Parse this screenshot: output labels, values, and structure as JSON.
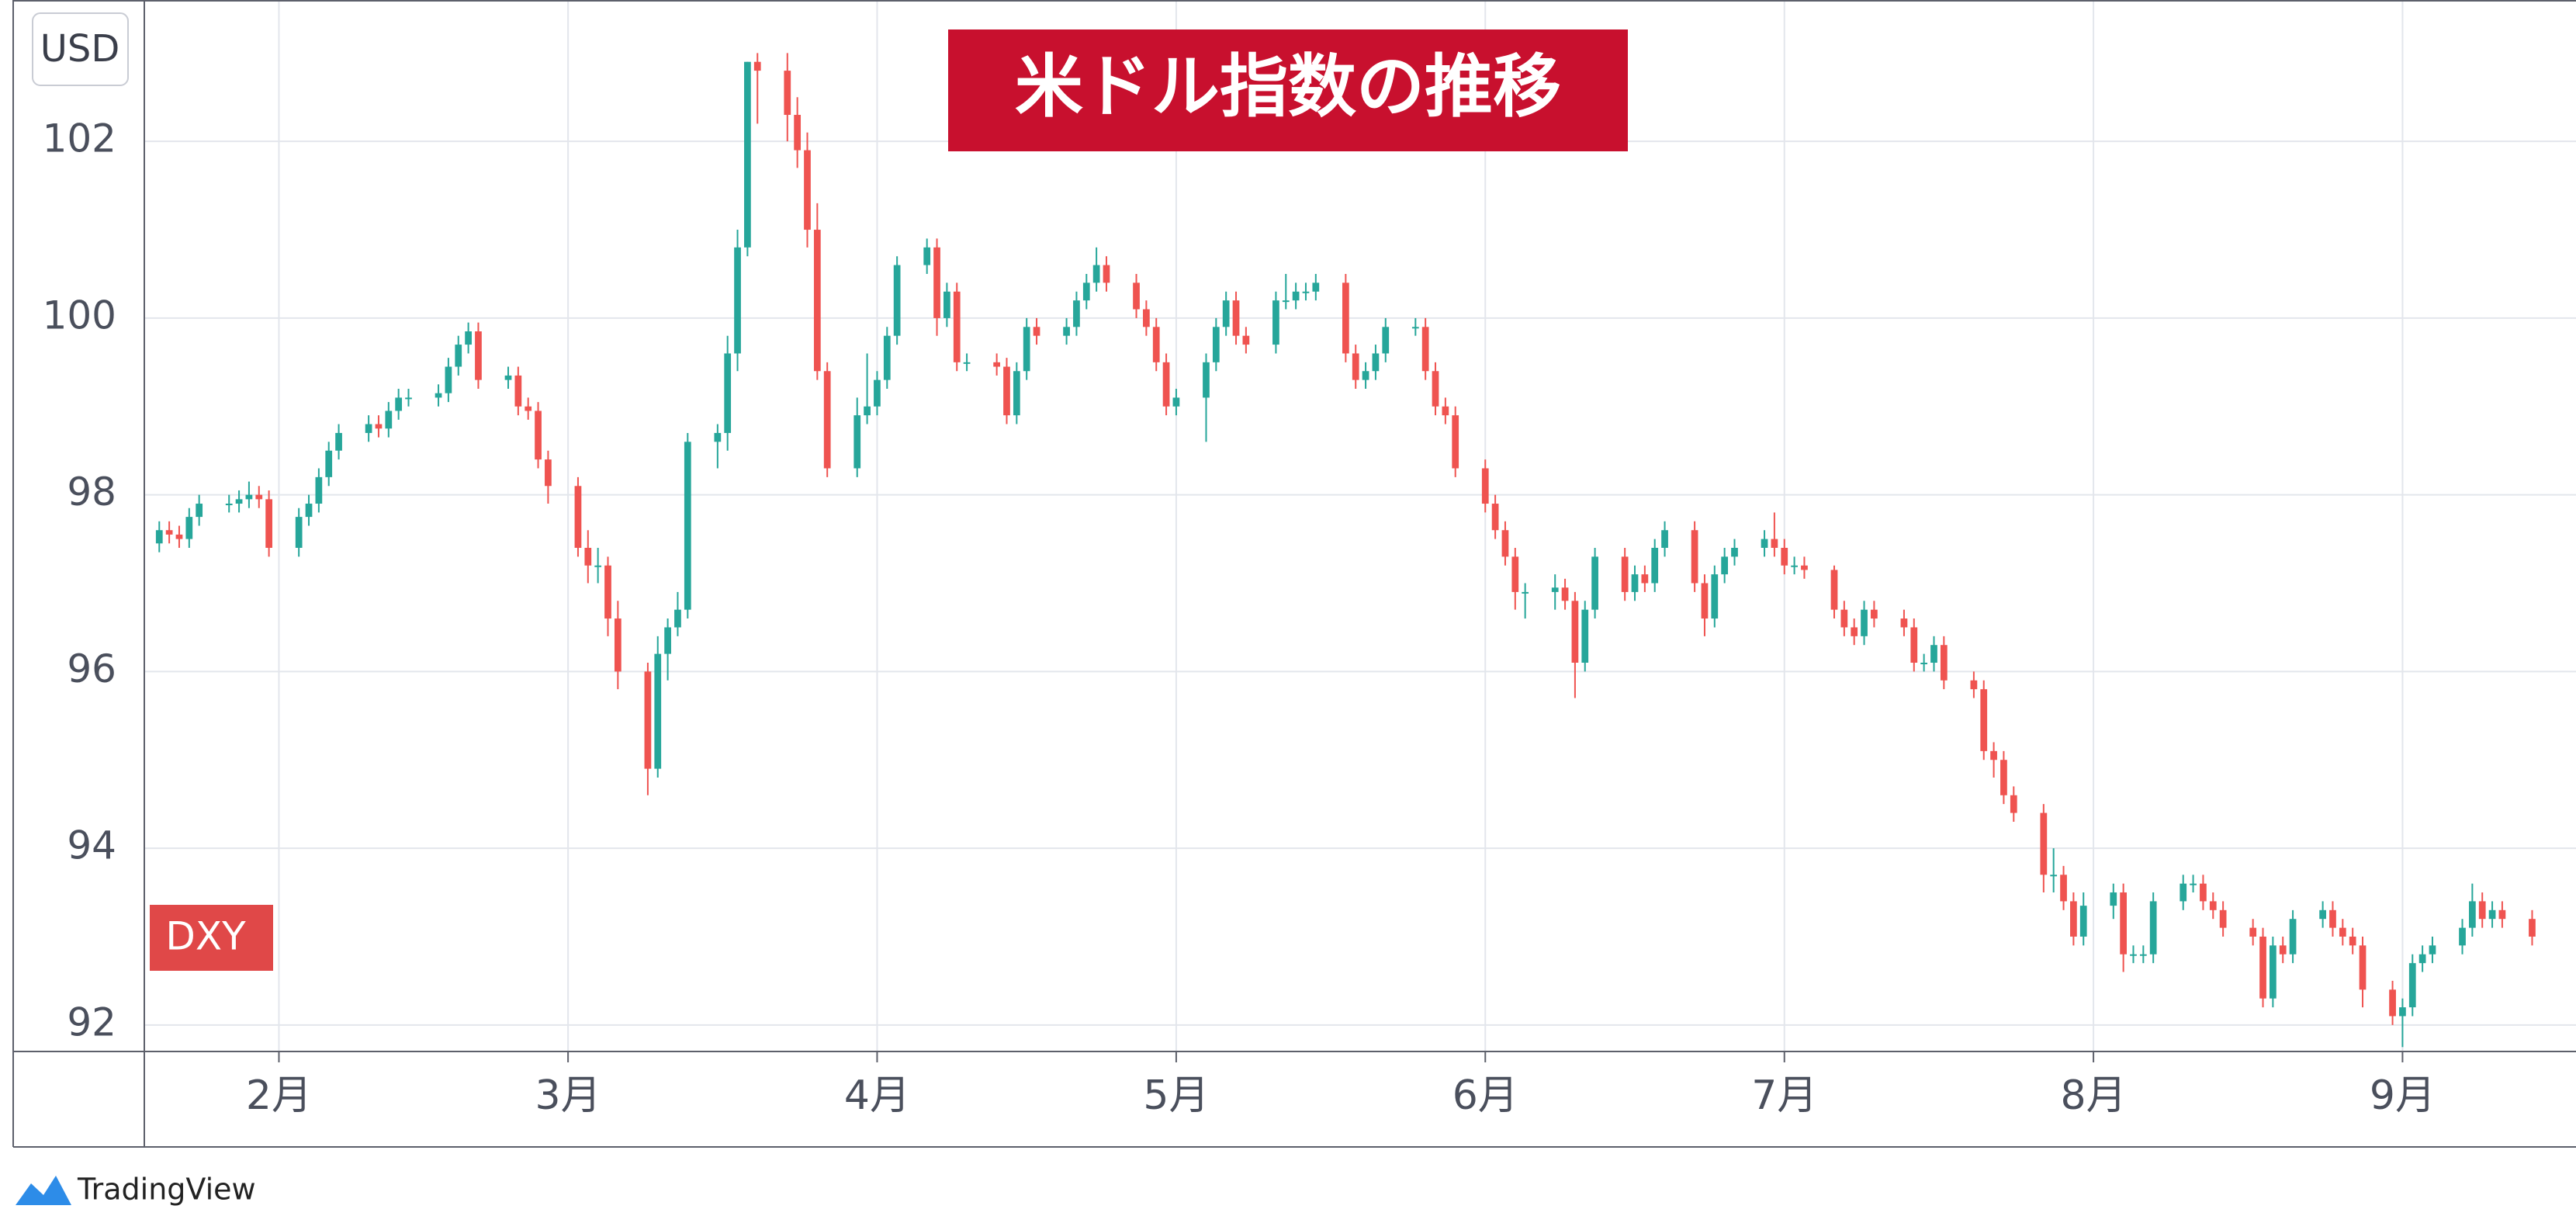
{
  "chart_data": {
    "type": "candlestick",
    "title": "米ドル指数の推移",
    "unit_label": "USD",
    "symbol": "DXY",
    "watermark": "TradingView",
    "up_color": "#26a69a",
    "down_color": "#ef5350",
    "grid": true,
    "xlim": [
      18.5,
      262.4
    ],
    "ylim": [
      91.7,
      103.6
    ],
    "yticks": [
      92,
      94,
      96,
      98,
      100,
      102
    ],
    "xticks": [
      {
        "value": 32,
        "label": "2月"
      },
      {
        "value": 61,
        "label": "3月"
      },
      {
        "value": 92,
        "label": "4月"
      },
      {
        "value": 122,
        "label": "5月"
      },
      {
        "value": 153,
        "label": "6月"
      },
      {
        "value": 183,
        "label": "7月"
      },
      {
        "value": 214,
        "label": "8月"
      },
      {
        "value": 245,
        "label": "9月"
      }
    ],
    "x": [
      20,
      21,
      22,
      23,
      24,
      27,
      28,
      29,
      30,
      31,
      34,
      35,
      36,
      37,
      38,
      41,
      42,
      43,
      44,
      45,
      48,
      49,
      50,
      51,
      52,
      55,
      56,
      57,
      58,
      59,
      62,
      63,
      64,
      65,
      66,
      69,
      70,
      71,
      72,
      73,
      76,
      77,
      78,
      79,
      80,
      83,
      84,
      85,
      86,
      87,
      90,
      91,
      92,
      93,
      94,
      97,
      98,
      99,
      100,
      101,
      104,
      105,
      106,
      107,
      108,
      111,
      112,
      113,
      114,
      115,
      118,
      119,
      120,
      121,
      122,
      125,
      126,
      127,
      128,
      129,
      132,
      133,
      134,
      135,
      136,
      139,
      140,
      141,
      142,
      143,
      146,
      147,
      148,
      149,
      150,
      153,
      154,
      155,
      156,
      157,
      160,
      161,
      162,
      163,
      164,
      167,
      168,
      169,
      170,
      171,
      174,
      175,
      176,
      177,
      178,
      181,
      182,
      183,
      184,
      185,
      188,
      189,
      190,
      191,
      192,
      195,
      196,
      197,
      198,
      199,
      202,
      203,
      204,
      205,
      206,
      209,
      210,
      211,
      212,
      213,
      216,
      217,
      218,
      219,
      220,
      223,
      224,
      225,
      226,
      227,
      230,
      231,
      232,
      233,
      234,
      237,
      238,
      239,
      240,
      241,
      244,
      245,
      246,
      247,
      248,
      251,
      252,
      253,
      254,
      255,
      258
    ],
    "open": [
      97.45,
      97.6,
      97.55,
      97.5,
      97.75,
      97.9,
      97.9,
      97.95,
      98.0,
      97.95,
      97.4,
      97.75,
      97.9,
      98.2,
      98.5,
      98.7,
      98.8,
      98.75,
      98.95,
      99.1,
      99.1,
      99.15,
      99.45,
      99.7,
      99.85,
      99.3,
      99.35,
      99.0,
      98.95,
      98.4,
      98.1,
      97.4,
      97.2,
      97.2,
      96.6,
      96.0,
      94.9,
      96.2,
      96.5,
      96.7,
      98.6,
      98.7,
      99.6,
      100.8,
      102.9,
      102.8,
      102.3,
      101.9,
      101.0,
      99.4,
      98.3,
      98.9,
      99.0,
      99.3,
      99.8,
      100.6,
      100.8,
      100.0,
      100.3,
      99.5,
      99.5,
      99.45,
      98.9,
      99.4,
      99.9,
      99.8,
      99.9,
      100.2,
      100.4,
      100.6,
      100.4,
      100.1,
      99.9,
      99.5,
      99.0,
      99.1,
      99.5,
      99.9,
      100.2,
      99.8,
      99.7,
      100.2,
      100.2,
      100.3,
      100.3,
      100.4,
      99.6,
      99.3,
      99.4,
      99.6,
      99.9,
      99.9,
      99.4,
      99.0,
      98.9,
      98.3,
      97.9,
      97.6,
      97.3,
      96.9,
      96.9,
      96.95,
      96.8,
      96.1,
      96.7,
      97.3,
      96.9,
      97.1,
      97.0,
      97.4,
      97.6,
      97.0,
      96.6,
      97.1,
      97.3,
      97.4,
      97.5,
      97.4,
      97.2,
      97.2,
      97.15,
      96.7,
      96.5,
      96.4,
      96.7,
      96.6,
      96.5,
      96.1,
      96.1,
      96.3,
      95.9,
      95.8,
      95.1,
      95.0,
      94.6,
      94.4,
      93.7,
      93.7,
      93.4,
      93.0,
      93.35,
      93.5,
      92.8,
      92.8,
      92.8,
      93.4,
      93.6,
      93.6,
      93.4,
      93.3,
      93.1,
      93.0,
      92.3,
      92.9,
      92.8,
      93.2,
      93.3,
      93.1,
      93.0,
      92.9,
      92.4,
      92.1,
      92.2,
      92.7,
      92.8,
      92.9,
      93.1,
      93.4,
      93.2,
      93.3,
      93.2
    ],
    "high": [
      97.7,
      97.7,
      97.65,
      97.85,
      98.0,
      98.0,
      98.05,
      98.15,
      98.1,
      98.05,
      97.85,
      98.0,
      98.3,
      98.6,
      98.8,
      98.9,
      98.9,
      99.05,
      99.2,
      99.2,
      99.25,
      99.55,
      99.8,
      99.95,
      99.95,
      99.45,
      99.45,
      99.1,
      99.05,
      98.5,
      98.2,
      97.6,
      97.4,
      97.3,
      96.8,
      96.1,
      96.4,
      96.6,
      96.9,
      98.7,
      98.8,
      99.8,
      101.0,
      102.9,
      103.0,
      103.0,
      102.5,
      102.1,
      101.3,
      99.5,
      99.1,
      99.6,
      99.4,
      99.9,
      100.7,
      100.9,
      100.9,
      100.4,
      100.4,
      99.6,
      99.6,
      99.55,
      99.5,
      100.0,
      100.0,
      100.0,
      100.3,
      100.5,
      100.8,
      100.7,
      100.5,
      100.2,
      100.0,
      99.6,
      99.2,
      99.6,
      100.0,
      100.3,
      100.3,
      99.9,
      100.3,
      100.5,
      100.4,
      100.4,
      100.5,
      100.5,
      99.7,
      99.5,
      99.7,
      100.0,
      100.0,
      100.0,
      99.5,
      99.1,
      99.0,
      98.4,
      98.0,
      97.7,
      97.4,
      97.0,
      97.1,
      97.05,
      96.9,
      96.8,
      97.4,
      97.4,
      97.2,
      97.2,
      97.5,
      97.7,
      97.7,
      97.1,
      97.2,
      97.4,
      97.5,
      97.6,
      97.8,
      97.5,
      97.3,
      97.3,
      97.2,
      96.8,
      96.6,
      96.8,
      96.8,
      96.7,
      96.6,
      96.2,
      96.4,
      96.4,
      96.0,
      95.9,
      95.2,
      95.1,
      94.7,
      94.5,
      94.0,
      93.8,
      93.5,
      93.5,
      93.6,
      93.6,
      92.9,
      92.9,
      93.5,
      93.7,
      93.7,
      93.7,
      93.5,
      93.4,
      93.2,
      93.1,
      93.0,
      93.0,
      93.3,
      93.4,
      93.4,
      93.2,
      93.1,
      93.0,
      92.5,
      92.3,
      92.8,
      92.9,
      93.0,
      93.2,
      93.6,
      93.5,
      93.4,
      93.4,
      93.3
    ],
    "low": [
      97.35,
      97.45,
      97.4,
      97.4,
      97.65,
      97.8,
      97.8,
      97.85,
      97.85,
      97.3,
      97.3,
      97.65,
      97.8,
      98.1,
      98.4,
      98.6,
      98.65,
      98.65,
      98.85,
      99.0,
      99.0,
      99.05,
      99.35,
      99.6,
      99.2,
      99.2,
      98.9,
      98.85,
      98.3,
      97.9,
      97.3,
      97.0,
      97.0,
      96.4,
      95.8,
      94.6,
      94.8,
      95.9,
      96.4,
      96.6,
      98.3,
      98.5,
      99.4,
      100.7,
      102.2,
      102.0,
      101.7,
      100.8,
      99.3,
      98.2,
      98.2,
      98.8,
      98.9,
      99.2,
      99.7,
      100.5,
      99.8,
      99.9,
      99.4,
      99.4,
      99.35,
      98.8,
      98.8,
      99.3,
      99.7,
      99.7,
      99.8,
      100.1,
      100.3,
      100.3,
      100.0,
      99.8,
      99.4,
      98.9,
      98.9,
      98.6,
      99.4,
      99.8,
      99.7,
      99.6,
      99.6,
      100.1,
      100.1,
      100.2,
      100.2,
      99.5,
      99.2,
      99.2,
      99.3,
      99.5,
      99.8,
      99.3,
      98.9,
      98.8,
      98.2,
      97.8,
      97.5,
      97.2,
      96.7,
      96.6,
      96.7,
      96.7,
      95.7,
      96.0,
      96.6,
      96.8,
      96.8,
      96.9,
      96.9,
      97.3,
      96.9,
      96.4,
      96.5,
      97.0,
      97.2,
      97.3,
      97.3,
      97.1,
      97.1,
      97.05,
      96.6,
      96.4,
      96.3,
      96.3,
      96.5,
      96.4,
      96.0,
      96.0,
      96.0,
      95.8,
      95.7,
      95.0,
      94.8,
      94.5,
      94.3,
      93.5,
      93.5,
      93.3,
      92.9,
      92.9,
      93.2,
      92.6,
      92.7,
      92.7,
      92.7,
      93.3,
      93.5,
      93.3,
      93.2,
      93.0,
      92.9,
      92.2,
      92.2,
      92.7,
      92.7,
      93.1,
      93.0,
      92.9,
      92.8,
      92.2,
      92.0,
      91.75,
      92.1,
      92.6,
      92.7,
      92.8,
      93.0,
      93.1,
      93.1,
      93.1,
      92.9
    ],
    "close": [
      97.6,
      97.55,
      97.5,
      97.75,
      97.9,
      97.9,
      97.95,
      98.0,
      97.95,
      97.4,
      97.75,
      97.9,
      98.2,
      98.5,
      98.7,
      98.8,
      98.75,
      98.95,
      99.1,
      99.1,
      99.15,
      99.45,
      99.7,
      99.85,
      99.3,
      99.35,
      99.0,
      98.95,
      98.4,
      98.1,
      97.4,
      97.2,
      97.2,
      96.6,
      96.0,
      94.9,
      96.2,
      96.5,
      96.7,
      98.6,
      98.7,
      99.6,
      100.8,
      102.9,
      102.8,
      102.3,
      101.9,
      101.0,
      99.4,
      98.3,
      98.9,
      99.0,
      99.3,
      99.8,
      100.6,
      100.8,
      100.0,
      100.3,
      99.5,
      99.5,
      99.45,
      98.9,
      99.4,
      99.9,
      99.8,
      99.9,
      100.2,
      100.4,
      100.6,
      100.4,
      100.1,
      99.9,
      99.5,
      99.0,
      99.1,
      99.5,
      99.9,
      100.2,
      99.8,
      99.7,
      100.2,
      100.2,
      100.3,
      100.3,
      100.4,
      99.6,
      99.3,
      99.4,
      99.6,
      99.9,
      99.9,
      99.4,
      99.0,
      98.9,
      98.3,
      97.9,
      97.6,
      97.3,
      96.9,
      96.9,
      96.95,
      96.8,
      96.1,
      96.7,
      97.3,
      96.9,
      97.1,
      97.0,
      97.4,
      97.6,
      97.0,
      96.6,
      97.1,
      97.3,
      97.4,
      97.5,
      97.4,
      97.2,
      97.2,
      97.15,
      96.7,
      96.5,
      96.4,
      96.7,
      96.6,
      96.5,
      96.1,
      96.1,
      96.3,
      95.9,
      95.8,
      95.1,
      95.0,
      94.6,
      94.4,
      93.7,
      93.7,
      93.4,
      93.0,
      93.35,
      93.5,
      92.8,
      92.8,
      92.8,
      93.4,
      93.6,
      93.6,
      93.4,
      93.3,
      93.1,
      93.0,
      92.3,
      92.9,
      92.8,
      93.2,
      93.3,
      93.1,
      93.0,
      92.9,
      92.4,
      92.1,
      92.2,
      92.7,
      92.8,
      92.9,
      93.1,
      93.4,
      93.2,
      93.3,
      93.2,
      93.0
    ]
  }
}
